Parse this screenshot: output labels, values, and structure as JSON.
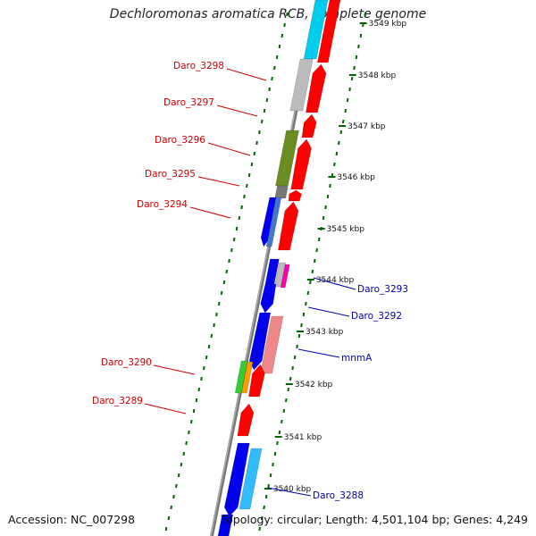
{
  "title": "Dechloromonas aromatica RCB, complete genome",
  "footer": {
    "accession": "Accession: NC_007298",
    "summary": "Topology: circular; Length: 4,501,104 bp; Genes: 4,249"
  },
  "scale": {
    "ticks": [
      {
        "label": "3549 kbp"
      },
      {
        "label": "3548 kbp"
      },
      {
        "label": "3547 kbp"
      },
      {
        "label": "3546 kbp"
      },
      {
        "label": "3545 kbp"
      },
      {
        "label": "3544 kbp"
      },
      {
        "label": "3543 kbp"
      },
      {
        "label": "3542 kbp"
      },
      {
        "label": "3541 kbp"
      },
      {
        "label": "3540 kbp"
      }
    ]
  },
  "colors": {
    "red": "#ff0000",
    "blue": "#0000ee",
    "cyan": "#00ccee",
    "lightblue": "#33bbff",
    "gray": "#bbbbbb",
    "darkgray": "#777777",
    "olive": "#6b8e23",
    "green": "#33cc33",
    "orange": "#ff9900",
    "pink": "#ee8888",
    "magenta": "#ff00aa",
    "steelblue": "#4477cc",
    "label_minus": "#cc0000",
    "label_plus": "#0000aa",
    "tick": "#006600"
  },
  "labels": [
    {
      "text": "Daro_3298",
      "strand": "minus"
    },
    {
      "text": "Daro_3297",
      "strand": "minus"
    },
    {
      "text": "Daro_3296",
      "strand": "minus"
    },
    {
      "text": "Daro_3295",
      "strand": "minus"
    },
    {
      "text": "Daro_3294",
      "strand": "minus"
    },
    {
      "text": "Daro_3290",
      "strand": "minus"
    },
    {
      "text": "Daro_3289",
      "strand": "minus"
    },
    {
      "text": "Daro_3293",
      "strand": "plus"
    },
    {
      "text": "Daro_3292",
      "strand": "plus"
    },
    {
      "text": "mnmA",
      "strand": "plus"
    },
    {
      "text": "Daro_3288",
      "strand": "plus"
    }
  ]
}
